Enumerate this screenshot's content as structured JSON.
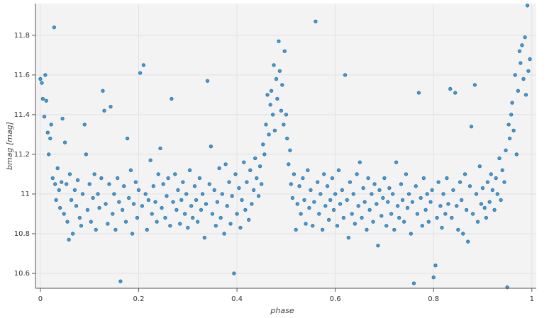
{
  "chart_data": {
    "type": "scatter",
    "x_label": "phase",
    "y_label": "bmag [mag]",
    "xlim": [
      -0.01,
      1.009
    ],
    "ylim": [
      10.525,
      11.96
    ],
    "xticks": [
      0,
      0.2,
      0.4,
      0.6,
      0.8,
      1
    ],
    "yticks": [
      10.6,
      10.8,
      11,
      11.2,
      11.4,
      11.6,
      11.8
    ],
    "grid": true,
    "series": [
      {
        "color": "#1f77b4",
        "x": [
          0.0,
          0.003,
          0.005,
          0.008,
          0.01,
          0.012,
          0.015,
          0.017,
          0.02,
          0.022,
          0.025,
          0.028,
          0.03,
          0.032,
          0.035,
          0.038,
          0.04,
          0.043,
          0.045,
          0.048,
          0.05,
          0.053,
          0.055,
          0.058,
          0.06,
          0.063,
          0.066,
          0.07,
          0.073,
          0.076,
          0.08,
          0.083,
          0.086,
          0.09,
          0.093,
          0.096,
          0.1,
          0.103,
          0.107,
          0.11,
          0.113,
          0.117,
          0.12,
          0.124,
          0.127,
          0.13,
          0.133,
          0.137,
          0.14,
          0.143,
          0.147,
          0.15,
          0.153,
          0.157,
          0.16,
          0.163,
          0.167,
          0.17,
          0.174,
          0.177,
          0.18,
          0.184,
          0.187,
          0.19,
          0.194,
          0.197,
          0.2,
          0.203,
          0.207,
          0.21,
          0.214,
          0.217,
          0.22,
          0.224,
          0.227,
          0.23,
          0.234,
          0.237,
          0.24,
          0.244,
          0.247,
          0.25,
          0.254,
          0.257,
          0.26,
          0.264,
          0.267,
          0.27,
          0.274,
          0.277,
          0.28,
          0.284,
          0.287,
          0.29,
          0.294,
          0.297,
          0.3,
          0.304,
          0.307,
          0.31,
          0.314,
          0.317,
          0.32,
          0.324,
          0.327,
          0.33,
          0.334,
          0.337,
          0.34,
          0.344,
          0.347,
          0.35,
          0.354,
          0.357,
          0.36,
          0.364,
          0.367,
          0.37,
          0.374,
          0.377,
          0.38,
          0.384,
          0.387,
          0.39,
          0.394,
          0.397,
          0.4,
          0.404,
          0.407,
          0.41,
          0.414,
          0.417,
          0.42,
          0.424,
          0.427,
          0.43,
          0.434,
          0.437,
          0.44,
          0.444,
          0.447,
          0.45,
          0.453,
          0.456,
          0.459,
          0.462,
          0.465,
          0.468,
          0.47,
          0.473,
          0.475,
          0.477,
          0.48,
          0.482,
          0.485,
          0.487,
          0.49,
          0.492,
          0.495,
          0.497,
          0.5,
          0.502,
          0.505,
          0.508,
          0.51,
          0.513,
          0.516,
          0.52,
          0.523,
          0.527,
          0.53,
          0.534,
          0.537,
          0.54,
          0.544,
          0.547,
          0.55,
          0.554,
          0.557,
          0.56,
          0.564,
          0.567,
          0.57,
          0.574,
          0.577,
          0.58,
          0.584,
          0.587,
          0.59,
          0.594,
          0.597,
          0.6,
          0.604,
          0.607,
          0.61,
          0.614,
          0.617,
          0.62,
          0.624,
          0.627,
          0.63,
          0.634,
          0.637,
          0.64,
          0.644,
          0.647,
          0.65,
          0.654,
          0.657,
          0.66,
          0.664,
          0.667,
          0.67,
          0.674,
          0.677,
          0.68,
          0.684,
          0.687,
          0.69,
          0.694,
          0.697,
          0.7,
          0.704,
          0.707,
          0.71,
          0.714,
          0.717,
          0.72,
          0.724,
          0.727,
          0.73,
          0.734,
          0.737,
          0.74,
          0.744,
          0.747,
          0.75,
          0.754,
          0.757,
          0.76,
          0.764,
          0.767,
          0.77,
          0.774,
          0.777,
          0.78,
          0.784,
          0.787,
          0.79,
          0.794,
          0.797,
          0.8,
          0.804,
          0.807,
          0.81,
          0.814,
          0.817,
          0.82,
          0.824,
          0.827,
          0.83,
          0.834,
          0.837,
          0.84,
          0.844,
          0.847,
          0.85,
          0.854,
          0.857,
          0.86,
          0.864,
          0.867,
          0.87,
          0.874,
          0.877,
          0.88,
          0.884,
          0.887,
          0.89,
          0.894,
          0.897,
          0.9,
          0.904,
          0.907,
          0.91,
          0.914,
          0.917,
          0.92,
          0.924,
          0.927,
          0.93,
          0.934,
          0.937,
          0.94,
          0.944,
          0.947,
          0.95,
          0.953,
          0.955,
          0.958,
          0.96,
          0.963,
          0.966,
          0.969,
          0.972,
          0.975,
          0.977,
          0.98,
          0.983,
          0.986,
          0.988,
          0.991,
          0.993,
          0.996
        ],
        "values": [
          11.58,
          11.56,
          11.48,
          11.39,
          11.6,
          11.47,
          11.31,
          11.2,
          11.28,
          11.35,
          11.08,
          11.84,
          11.05,
          10.97,
          11.13,
          11.02,
          10.93,
          11.06,
          11.38,
          10.9,
          11.26,
          11.05,
          10.86,
          10.77,
          11.1,
          10.97,
          10.8,
          11.02,
          10.94,
          11.07,
          10.88,
          10.84,
          11.0,
          11.35,
          11.2,
          10.92,
          11.05,
          10.86,
          10.98,
          11.1,
          10.82,
          11.0,
          10.93,
          11.08,
          11.52,
          11.42,
          10.95,
          10.85,
          11.05,
          11.44,
          10.9,
          11.0,
          10.82,
          11.08,
          10.96,
          10.56,
          10.92,
          11.04,
          10.86,
          11.28,
          10.98,
          11.12,
          10.8,
          10.95,
          11.06,
          10.88,
          11.02,
          11.61,
          10.94,
          11.65,
          11.0,
          10.82,
          10.97,
          11.17,
          10.9,
          11.04,
          10.96,
          10.86,
          11.1,
          11.23,
          10.93,
          11.05,
          10.88,
          10.99,
          11.08,
          10.84,
          11.48,
          10.96,
          11.1,
          10.92,
          11.02,
          10.85,
          10.97,
          11.06,
          10.9,
          11.0,
          10.83,
          11.12,
          10.94,
          10.88,
          11.04,
          10.97,
          10.86,
          11.08,
          10.92,
          11.0,
          10.78,
          10.95,
          11.57,
          11.05,
          11.24,
          10.9,
          11.02,
          10.84,
          10.96,
          11.13,
          10.88,
          11.0,
          10.8,
          11.15,
          10.94,
          11.06,
          10.85,
          10.99,
          10.6,
          11.1,
          10.9,
          11.03,
          10.83,
          10.97,
          11.16,
          10.92,
          11.06,
          10.87,
          11.12,
          10.95,
          11.02,
          11.18,
          11.08,
          10.99,
          11.14,
          11.05,
          11.25,
          11.2,
          11.35,
          11.5,
          11.3,
          11.45,
          11.52,
          11.4,
          11.65,
          11.32,
          11.58,
          11.48,
          11.77,
          11.62,
          11.42,
          11.55,
          11.35,
          11.72,
          11.4,
          11.28,
          11.15,
          11.22,
          11.05,
          10.98,
          11.1,
          10.82,
          10.95,
          11.04,
          10.9,
          11.08,
          10.97,
          10.85,
          11.12,
          10.93,
          11.02,
          10.84,
          10.96,
          11.87,
          11.06,
          10.9,
          11.0,
          10.82,
          11.1,
          10.94,
          11.04,
          10.87,
          10.97,
          11.08,
          10.92,
          11.0,
          10.84,
          11.12,
          10.95,
          11.02,
          10.88,
          11.6,
          10.97,
          10.78,
          11.06,
          10.9,
          11.0,
          10.85,
          11.1,
          10.94,
          11.16,
          10.88,
          11.03,
          10.96,
          10.82,
          11.08,
          10.92,
          11.0,
          10.86,
          11.05,
          10.95,
          10.74,
          11.02,
          10.89,
          10.98,
          11.08,
          10.84,
          10.96,
          11.03,
          10.9,
          11.0,
          10.82,
          11.16,
          10.94,
          10.88,
          11.05,
          10.97,
          10.86,
          11.1,
          10.93,
          11.0,
          10.8,
          10.96,
          10.55,
          11.04,
          10.9,
          11.51,
          10.98,
          10.84,
          11.08,
          10.92,
          11.0,
          10.86,
          10.96,
          11.02,
          10.58,
          10.64,
          10.88,
          11.06,
          10.94,
          10.83,
          11.0,
          10.9,
          11.08,
          10.95,
          11.53,
          10.88,
          11.02,
          11.51,
          10.94,
          10.82,
          11.06,
          10.97,
          10.8,
          11.1,
          10.92,
          10.76,
          11.04,
          11.34,
          10.9,
          11.55,
          11.0,
          10.86,
          11.14,
          10.95,
          11.03,
          10.93,
          10.88,
          11.06,
          10.96,
          11.1,
          11.02,
          10.92,
          11.08,
          11.0,
          11.18,
          10.97,
          11.12,
          11.06,
          11.22,
          10.53,
          11.35,
          11.28,
          11.4,
          11.46,
          11.32,
          11.6,
          11.2,
          11.52,
          11.72,
          11.66,
          11.75,
          11.58,
          11.79,
          11.5,
          11.95,
          11.62,
          11.68
        ]
      }
    ]
  }
}
